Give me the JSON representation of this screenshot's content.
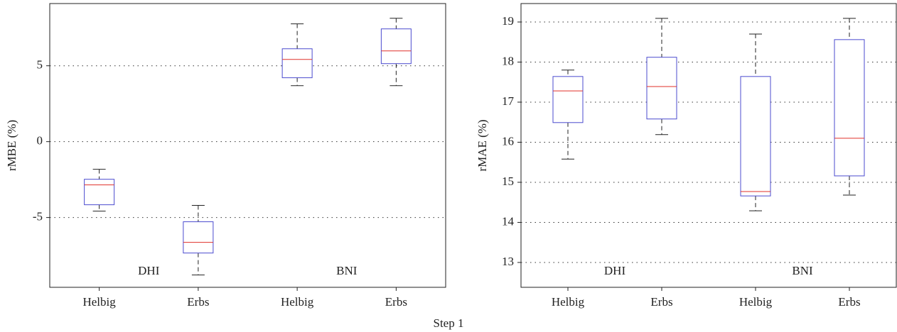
{
  "chart_data": [
    {
      "type": "box",
      "ylabel": "rMBE (%)",
      "categories": [
        "Helbig",
        "Erbs",
        "Helbig",
        "Erbs"
      ],
      "groups": [
        "DHI",
        "BNI"
      ],
      "boxes": [
        {
          "low": -4.58,
          "q1": -4.16,
          "median": -2.85,
          "q3": -2.48,
          "high": -1.82
        },
        {
          "low": -8.79,
          "q1": -7.34,
          "median": -6.64,
          "q3": -5.28,
          "high": -4.2
        },
        {
          "low": 3.69,
          "q1": 4.21,
          "median": 5.42,
          "q3": 6.12,
          "high": 7.76
        },
        {
          "low": 3.69,
          "q1": 5.14,
          "median": 5.98,
          "q3": 7.43,
          "high": 8.13
        }
      ],
      "box_color": "#4b4bcf",
      "median_color": "#e0302a",
      "ylim": [
        -9.6,
        9.1
      ],
      "yticks": [
        -5,
        0,
        5
      ],
      "grid": true
    },
    {
      "type": "box",
      "ylabel": "rMAE (%)",
      "categories": [
        "Helbig",
        "Erbs",
        "Helbig",
        "Erbs"
      ],
      "groups": [
        "DHI",
        "BNI"
      ],
      "boxes": [
        {
          "low": 15.58,
          "q1": 16.49,
          "median": 17.28,
          "q3": 17.64,
          "high": 17.8
        },
        {
          "low": 16.19,
          "q1": 16.58,
          "median": 17.39,
          "q3": 18.12,
          "high": 19.09
        },
        {
          "low": 14.29,
          "q1": 14.66,
          "median": 14.77,
          "q3": 17.64,
          "high": 18.7
        },
        {
          "low": 14.68,
          "q1": 15.16,
          "median": 16.1,
          "q3": 18.56,
          "high": 19.09
        }
      ],
      "box_color": "#4b4bcf",
      "median_color": "#e0302a",
      "ylim": [
        12.38,
        19.46
      ],
      "yticks": [
        13,
        14,
        15,
        16,
        17,
        18,
        19
      ],
      "grid": true
    }
  ],
  "xlabel": "Step 1"
}
